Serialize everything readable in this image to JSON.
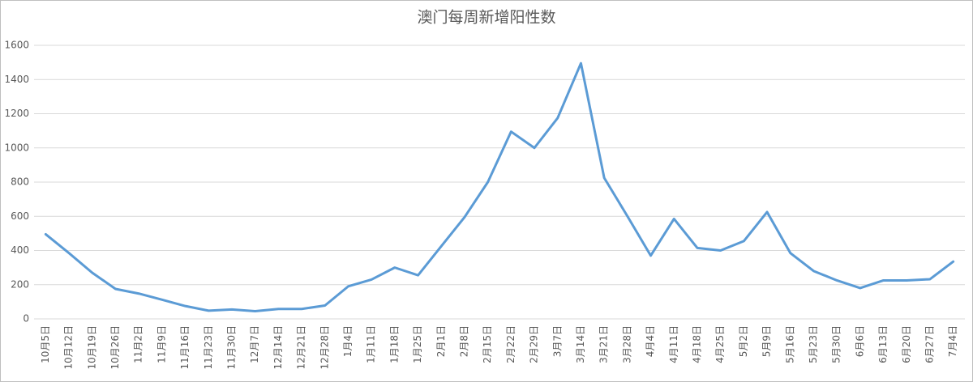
{
  "chart_data": {
    "type": "line",
    "title": "澳门每周新增阳性数",
    "categories": [
      "10月5日",
      "10月12日",
      "10月19日",
      "10月26日",
      "11月2日",
      "11月9日",
      "11月16日",
      "11月23日",
      "11月30日",
      "12月7日",
      "12月14日",
      "12月21日",
      "12月28日",
      "1月4日",
      "1月11日",
      "1月18日",
      "1月25日",
      "2月1日",
      "2月8日",
      "2月15日",
      "2月22日",
      "2月29日",
      "3月7日",
      "3月14日",
      "3月21日",
      "3月28日",
      "4月4日",
      "4月11日",
      "4月18日",
      "4月25日",
      "5月2日",
      "5月9日",
      "5月16日",
      "5月23日",
      "5月30日",
      "6月6日",
      "6月13日",
      "6月20日",
      "6月27日",
      "7月4日"
    ],
    "series": [
      {
        "color": "#5b9bd5",
        "values": [
          495,
          385,
          270,
          175,
          148,
          112,
          75,
          48,
          55,
          45,
          58,
          58,
          78,
          190,
          230,
          300,
          255,
          425,
          595,
          800,
          1095,
          1000,
          1175,
          1495,
          825,
          600,
          370,
          585,
          415,
          400,
          455,
          625,
          385,
          280,
          225,
          180,
          225,
          225,
          232,
          335
        ]
      }
    ],
    "ylim": [
      0,
      1600
    ],
    "yticks": [
      0,
      200,
      400,
      600,
      800,
      1000,
      1200,
      1400,
      1600
    ],
    "grid": true
  }
}
